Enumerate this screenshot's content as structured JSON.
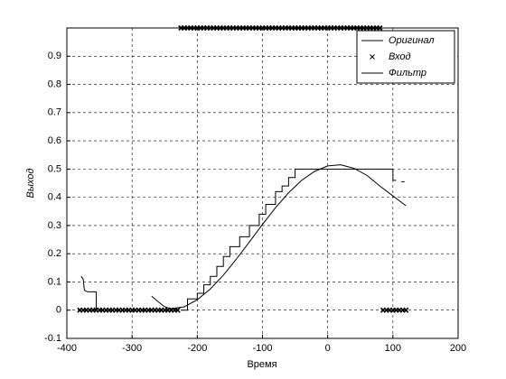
{
  "chart_data": {
    "type": "line",
    "xlabel": "Время",
    "ylabel": "Выход",
    "xlim": [
      -400,
      200
    ],
    "xticks": [
      -400,
      -300,
      -200,
      -100,
      0,
      100,
      200
    ],
    "ylim": [
      -0.1,
      1
    ],
    "yticks": [
      -0.1,
      0,
      0.1,
      0.2,
      0.3,
      0.4,
      0.5,
      0.6,
      0.7,
      0.8,
      0.9
    ],
    "grid": true,
    "legend": "upper right",
    "series": [
      {
        "name": "Оригинал",
        "color": "#000000",
        "style": "line",
        "x": [
          -270,
          -260,
          -250,
          -240,
          -220,
          -200,
          -180,
          -160,
          -140,
          -120,
          -100,
          -80,
          -60,
          -40,
          -20,
          0,
          20,
          40,
          60,
          80,
          100,
          120
        ],
        "values": [
          0.05,
          0.03,
          0.012,
          0.005,
          0.012,
          0.037,
          0.075,
          0.124,
          0.181,
          0.242,
          0.304,
          0.363,
          0.416,
          0.46,
          0.492,
          0.511,
          0.515,
          0.503,
          0.478,
          0.44,
          0.405,
          0.37
        ]
      },
      {
        "name": "Вход",
        "color": "#000000",
        "style": "marker",
        "x": [
          -380,
          -375,
          -370,
          -365,
          -360,
          -355,
          -350,
          -345,
          -340,
          -335,
          -330,
          -325,
          -320,
          -315,
          -310,
          -305,
          -300,
          -295,
          -290,
          -285,
          -280,
          -275,
          -270,
          -265,
          -260,
          -255,
          -250,
          -245,
          -240,
          -235,
          -230,
          -225,
          -220,
          -215,
          -210,
          -205,
          -200,
          -195,
          -190,
          -185,
          -180,
          -175,
          -170,
          -165,
          -160,
          -155,
          -150,
          -145,
          -140,
          -135,
          -130,
          -125,
          -120,
          -115,
          -110,
          -105,
          -100,
          -95,
          -90,
          -85,
          -80,
          -75,
          -70,
          -65,
          -60,
          -55,
          -50,
          -45,
          -40,
          -35,
          -30,
          -25,
          -20,
          -15,
          -10,
          -5,
          0,
          5,
          10,
          15,
          20,
          25,
          30,
          35,
          40,
          45,
          50,
          55,
          60,
          65,
          70,
          75,
          80,
          85,
          90,
          95,
          100,
          105,
          110,
          115,
          120
        ],
        "values": [
          0,
          0,
          0,
          0,
          0,
          0,
          0,
          0,
          0,
          0,
          0,
          0,
          0,
          0,
          0,
          0,
          0,
          0,
          0,
          0,
          0,
          0,
          0,
          0,
          0,
          0,
          0,
          0,
          0,
          0,
          0,
          1,
          1,
          1,
          1,
          1,
          1,
          1,
          1,
          1,
          1,
          1,
          1,
          1,
          1,
          1,
          1,
          1,
          1,
          1,
          1,
          1,
          1,
          1,
          1,
          1,
          1,
          1,
          1,
          1,
          1,
          1,
          1,
          1,
          1,
          1,
          1,
          1,
          1,
          1,
          1,
          1,
          1,
          1,
          1,
          1,
          1,
          1,
          1,
          1,
          1,
          1,
          1,
          1,
          1,
          1,
          1,
          1,
          1,
          1,
          1,
          1,
          1,
          0,
          0,
          0,
          0,
          0,
          0,
          0,
          0
        ]
      },
      {
        "name": "Фильтр",
        "color": "#000000",
        "style": "line",
        "x": [
          -378,
          -375,
          -373,
          -368,
          -355,
          -355,
          null,
          -225,
          -215,
          -215,
          -200,
          -200,
          -190,
          -190,
          -180,
          -180,
          -170,
          -170,
          -160,
          -160,
          -150,
          -150,
          -135,
          -135,
          -120,
          -120,
          -105,
          -105,
          -95,
          -95,
          -80,
          -80,
          -70,
          -70,
          -60,
          -60,
          -50,
          -50,
          100,
          100,
          105,
          null,
          113,
          118
        ],
        "values": [
          0.12,
          0.11,
          0.07,
          0.065,
          0.065,
          0,
          null,
          0,
          0,
          0.04,
          0.04,
          0.06,
          0.06,
          0.09,
          0.09,
          0.12,
          0.12,
          0.155,
          0.155,
          0.19,
          0.19,
          0.225,
          0.225,
          0.26,
          0.26,
          0.3,
          0.3,
          0.34,
          0.34,
          0.375,
          0.375,
          0.42,
          0.42,
          0.44,
          0.44,
          0.47,
          0.47,
          0.5,
          0.5,
          0.46,
          0.46,
          null,
          0.455,
          0.455
        ]
      }
    ]
  }
}
